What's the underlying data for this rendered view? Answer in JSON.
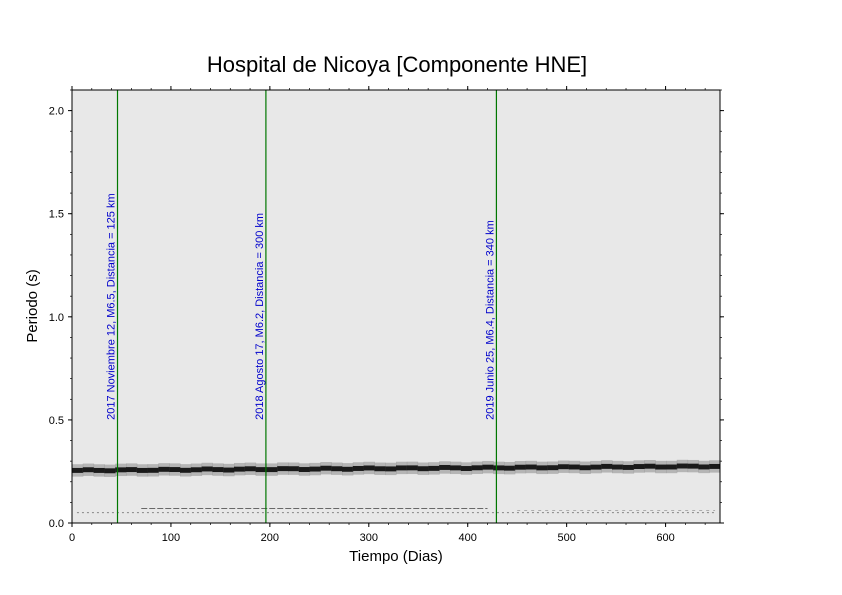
{
  "chart_data": {
    "type": "heatmap",
    "title": "Hospital de Nicoya [Componente HNE]",
    "xlabel": "Tiempo (Dias)",
    "ylabel": "Periodo (s)",
    "xlim": [
      0,
      655
    ],
    "ylim": [
      0,
      2.1
    ],
    "x_ticks": [
      0,
      100,
      200,
      300,
      400,
      500,
      600
    ],
    "y_ticks": [
      0.0,
      0.5,
      1.0,
      1.5,
      2.0
    ],
    "y_tick_labels": [
      "0.0",
      "0.5",
      "1.0",
      "1.5",
      "2.0"
    ],
    "grid": false,
    "background_color": "#e8e8e8",
    "dominant_band": {
      "description_period_s": 0.265,
      "start_period_s": 0.255,
      "end_period_s": 0.275,
      "color": "#1a1a1a"
    },
    "events": [
      {
        "day": 46,
        "label": "2017 Noviembre 12, M6.5, Distancia = 125 km"
      },
      {
        "day": 196,
        "label": "2018 Agosto 17, M6.2, Distancia = 300 km"
      },
      {
        "day": 429,
        "label": "2019 Junio 25, M6.4, Distancia = 340 km"
      }
    ],
    "event_line_color": "#007700",
    "event_label_color": "#0000cc"
  }
}
